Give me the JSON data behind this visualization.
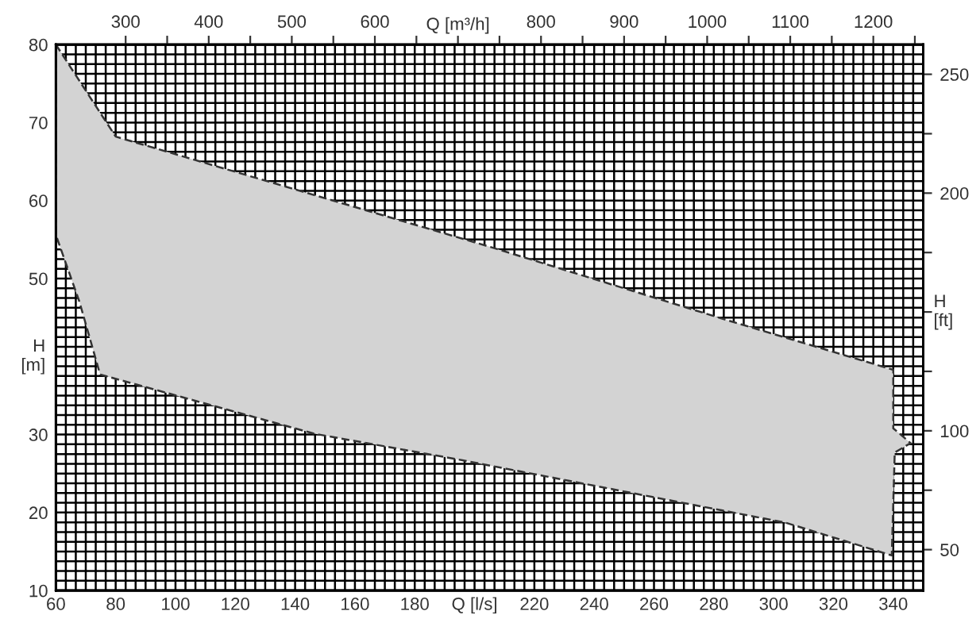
{
  "chart_data": {
    "type": "area",
    "xlabel": "Q [l/s]",
    "ylabel": "H\n[m]",
    "y2label": "H\n[ft]",
    "x2label": "Q [m³/h]",
    "series": [
      {
        "color": "#d3d3d3",
        "x": [
          60,
          80,
          204,
          285,
          340,
          340,
          345.8,
          340.5,
          339.5,
          304,
          196,
          146.5,
          74.8,
          67.9,
          60
        ],
        "values": [
          80,
          68.2,
          54.2,
          44.6,
          38.3,
          30.8,
          28.9,
          27.7,
          14.5,
          18.7,
          26.7,
          30.1,
          37.7,
          47.0,
          55.6
        ]
      }
    ],
    "line_style": "dashed",
    "xlim": [
      60,
      350
    ],
    "xticks": [
      60,
      80,
      100,
      120,
      140,
      160,
      180,
      220,
      240,
      260,
      280,
      300,
      320,
      340
    ],
    "ylim": [
      10,
      80
    ],
    "yticks": [
      10,
      20,
      30,
      50,
      60,
      70,
      80
    ],
    "y2lim": [
      32.8,
      262.5
    ],
    "y2ticks": [
      50,
      {
        "value": 75,
        "label": null
      },
      100,
      {
        "value": 125,
        "label": null
      },
      {
        "value": 150,
        "label": null
      },
      {
        "value": 175,
        "label": null
      },
      200,
      {
        "value": 225,
        "label": null
      },
      250
    ],
    "x2lim": [
      216,
      1260
    ],
    "x2ticks": [
      300,
      {
        "value": 350,
        "label": null
      },
      400,
      {
        "value": 450,
        "label": null
      },
      500,
      {
        "value": 550,
        "label": null
      },
      600,
      {
        "value": 650,
        "label": null
      },
      {
        "value": 700,
        "label": null
      },
      {
        "value": 750,
        "label": null
      },
      800,
      {
        "value": 850,
        "label": null
      },
      900,
      {
        "value": 950,
        "label": null
      },
      1000,
      {
        "value": 1050,
        "label": null
      },
      1100,
      {
        "value": 1150,
        "label": null
      },
      1200,
      {
        "value": 1250,
        "label": null
      }
    ],
    "grid": true
  }
}
